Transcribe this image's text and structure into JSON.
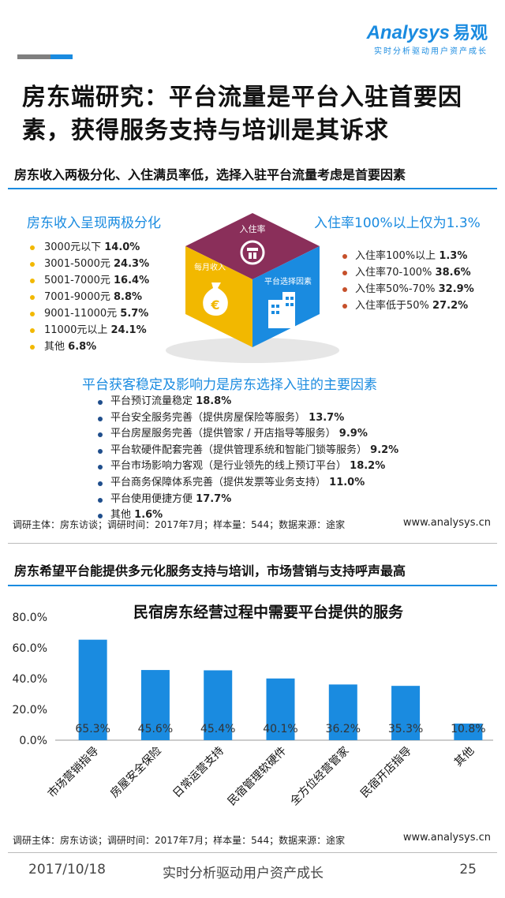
{
  "logo": {
    "brand": "Analysys",
    "brand_cn": "易观",
    "slogan": "实时分析驱动用户资产成长"
  },
  "title": "房东端研究：平台流量是平台入驻首要因素，获得服务支持与培训是其诉求",
  "section1": {
    "title": "房东收入两极分化、入住满员率低，选择入驻平台流量考虑是首要因素",
    "income_head": "房东收入呈现两极分化",
    "income_items": [
      {
        "label": "3000元以下",
        "value": "14.0%"
      },
      {
        "label": "3001-5000元",
        "value": "24.3%"
      },
      {
        "label": "5001-7000元",
        "value": "16.4%"
      },
      {
        "label": "7001-9000元",
        "value": "8.8%"
      },
      {
        "label": "9001-11000元",
        "value": "5.7%"
      },
      {
        "label": "11000元以上",
        "value": "24.1%"
      },
      {
        "label": "其他",
        "value": "6.8%"
      }
    ],
    "occupancy_head": "入住率100%以上仅为1.3%",
    "occupancy_items": [
      {
        "label": "入住率100%以上",
        "value": "1.3%"
      },
      {
        "label": "入住率70-100%",
        "value": "38.6%"
      },
      {
        "label": "入住率50%-70%",
        "value": "32.9%"
      },
      {
        "label": "入住率低于50%",
        "value": "27.2%"
      }
    ],
    "cube": {
      "top_label": "入住率",
      "left_label": "每月收入",
      "right_label": "平台选择因素",
      "colors": {
        "top": "#8a2f5a",
        "left": "#f2b800",
        "right": "#1a8be0"
      }
    },
    "factor_head": "平台获客稳定及影响力是房东选择入驻的主要因素",
    "factor_items": [
      {
        "label": "平台预订流量稳定",
        "value": "18.8%"
      },
      {
        "label": "平台安全服务完善（提供房屋保险等服务）",
        "value": "13.7%"
      },
      {
        "label": "平台房屋服务完善（提供管家 / 开店指导等服务）",
        "value": "9.9%"
      },
      {
        "label": "平台软硬件配套完善（提供管理系统和智能门锁等服务）",
        "value": "9.2%"
      },
      {
        "label": "平台市场影响力客观（是行业领先的线上预订平台）",
        "value": "18.2%"
      },
      {
        "label": "平台商务保障体系完善（提供发票等业务支持）",
        "value": "11.0%"
      },
      {
        "label": "平台使用便捷方便",
        "value": "17.7%"
      },
      {
        "label": "其他",
        "value": "1.6%"
      }
    ],
    "note": "调研主体：房东访谈；调研时间：2017年7月；样本量：544；数据来源：途家",
    "url": "www.analysys.cn"
  },
  "section2": {
    "title": "房东希望平台能提供多元化服务支持与培训，市场营销与支持呼声最高",
    "note": "调研主体：房东访谈；调研时间：2017年7月；样本量：544；数据来源：途家",
    "url": "www.analysys.cn"
  },
  "chart_data": {
    "type": "bar",
    "title": "民宿房东经营过程中需要平台提供的服务",
    "categories": [
      "市场营销指导",
      "房屋安全保险",
      "日常运营支持",
      "民宿管理软硬件",
      "全方位经营管家",
      "民宿开店指导",
      "其他"
    ],
    "values": [
      65.3,
      45.6,
      45.4,
      40.1,
      36.2,
      35.3,
      10.8
    ],
    "value_labels": [
      "65.3%",
      "45.6%",
      "45.4%",
      "40.1%",
      "36.2%",
      "35.3%",
      "10.8%"
    ],
    "ylim": [
      0,
      80
    ],
    "yticks": [
      "0.0%",
      "20.0%",
      "40.0%",
      "60.0%",
      "80.0%"
    ],
    "xlabel": "",
    "ylabel": "",
    "bar_color": "#1a8be0",
    "grid": false
  },
  "footer": {
    "date": "2017/10/18",
    "slogan": "实时分析驱动用户资产成长",
    "page": "25"
  }
}
